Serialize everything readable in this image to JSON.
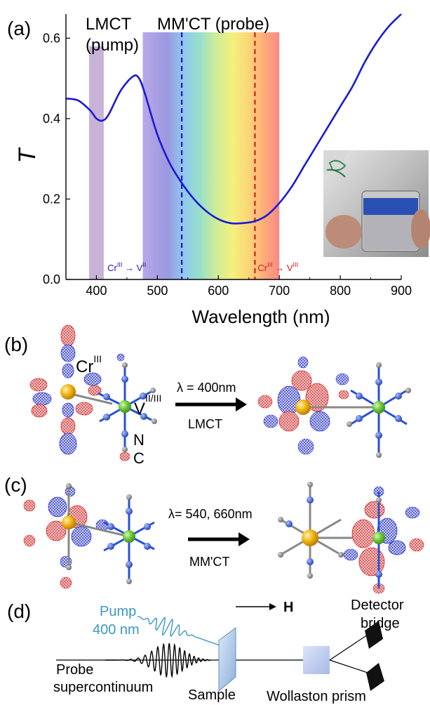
{
  "panels": {
    "a": "(a)",
    "b": "(b)",
    "c": "(c)",
    "d": "(d)"
  },
  "chart_data": {
    "type": "line",
    "xlabel": "Wavelength (nm)",
    "ylabel": "T",
    "xlim": [
      350,
      900
    ],
    "ylim": [
      0.0,
      0.66
    ],
    "xticks": [
      400,
      500,
      600,
      700,
      800,
      900
    ],
    "yticks": [
      0.0,
      0.2,
      0.4,
      0.6
    ],
    "series": [
      {
        "x": [
          350,
          370,
          390,
          400,
          410,
          420,
          440,
          460,
          470,
          480,
          500,
          520,
          540,
          560,
          580,
          600,
          620,
          640,
          660,
          680,
          700,
          720,
          740,
          760,
          780,
          800,
          820,
          840,
          860,
          880,
          900
        ],
        "y": [
          0.45,
          0.445,
          0.42,
          0.4,
          0.395,
          0.41,
          0.47,
          0.505,
          0.5,
          0.46,
          0.36,
          0.29,
          0.24,
          0.2,
          0.17,
          0.15,
          0.14,
          0.14,
          0.145,
          0.16,
          0.19,
          0.23,
          0.28,
          0.33,
          0.38,
          0.43,
          0.48,
          0.54,
          0.59,
          0.63,
          0.66
        ],
        "color": "#1a1ad6"
      }
    ],
    "bands": {
      "pump": {
        "label_line1": "LMCT",
        "label_line2": "(pump)",
        "x_range": [
          388,
          412
        ],
        "y_top": 0.58,
        "color": "#c8b2d8"
      },
      "probe": {
        "label": "MM'CT (probe)",
        "x_range": [
          476,
          700
        ]
      }
    },
    "markers": [
      {
        "x": 540,
        "label_main": "Cr",
        "sup1": "III",
        "arrow": " → V",
        "sup2": "II",
        "color": "#1a1ab4"
      },
      {
        "x": 660,
        "label_main": "Cr",
        "sup1": "III",
        "arrow": " → V",
        "sup2": "III",
        "color": "#d21e1e"
      }
    ]
  },
  "panel_b": {
    "cr_label": "Cr",
    "cr_sup": "III",
    "v_label": "V",
    "v_sup": "II/III",
    "n_label": "N",
    "c_label": "C",
    "lambda_text": "λ = 400nm",
    "transition": "LMCT"
  },
  "panel_c": {
    "lambda_text": "λ= 540, 660nm",
    "transition": "MM'CT"
  },
  "panel_d": {
    "pump_line1": "Pump",
    "pump_line2": "400 nm",
    "field_label": "H",
    "detector_line1": "Detector",
    "detector_line2": "bridge",
    "probe_line1": "Probe",
    "probe_line2": "supercontinuum",
    "sample": "Sample",
    "wollaston": "Wollaston prism"
  },
  "colors": {
    "curve": "#1a1ad6",
    "pump_text": "#3c96c8",
    "orbital_red": "#d22828",
    "orbital_blue": "#2832c8",
    "cr_atom": "#f0b414",
    "v_atom": "#6ec83c",
    "n_atom": "#2850d2",
    "c_atom": "#8c8c8c"
  }
}
